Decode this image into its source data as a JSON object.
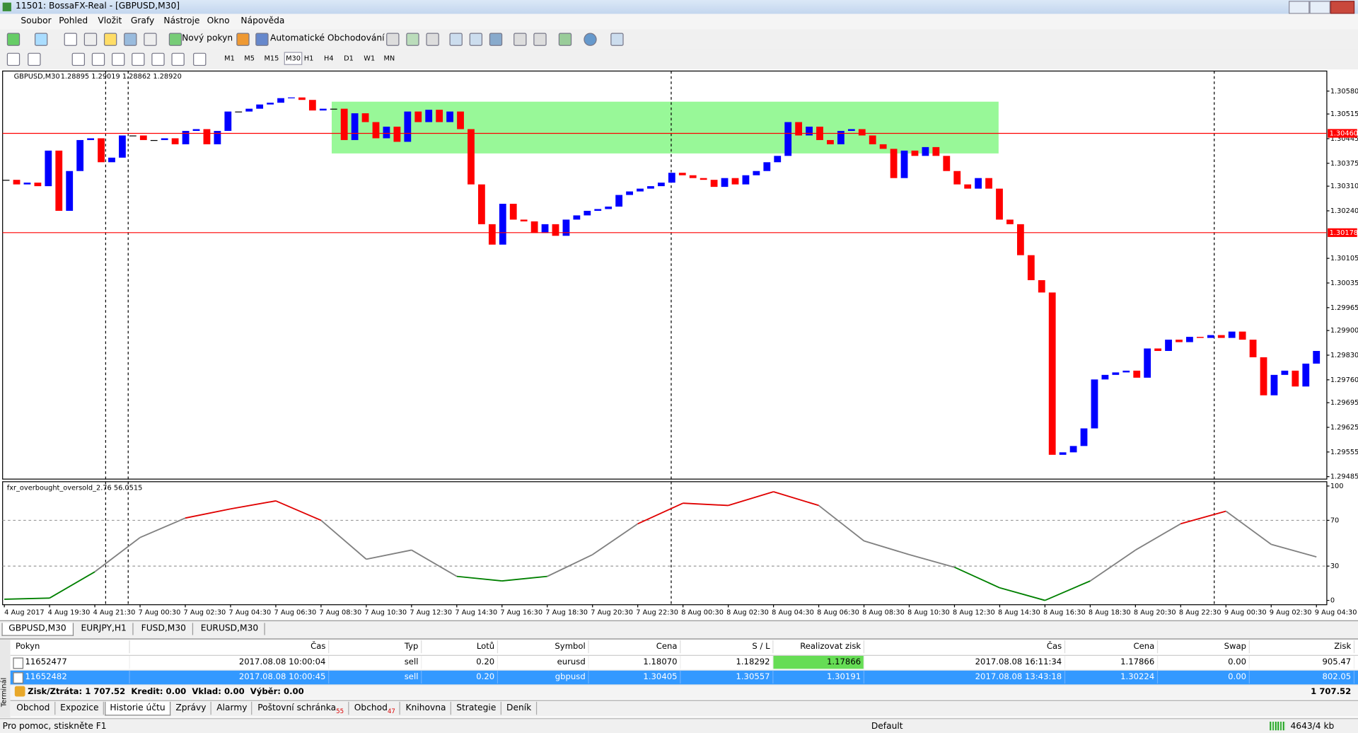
{
  "window": {
    "title": "11501: BossaFX-Real - [GBPUSD,M30]"
  },
  "menu": [
    "Soubor",
    "Pohled",
    "Vložit",
    "Grafy",
    "Nástroje",
    "Okno",
    "Nápověda"
  ],
  "toolbar": {
    "new_order": "Nový pokyn",
    "auto_trading": "Automatické Obchodování",
    "timeframes": [
      "M1",
      "M5",
      "M15",
      "M30",
      "H1",
      "H4",
      "D1",
      "W1",
      "MN"
    ]
  },
  "chart": {
    "label": "GBPUSD,M30",
    "quote": "1.28895 1.29019 1.28862 1.28920",
    "up_color": "#0000ff",
    "down_color": "#ff0000",
    "close": [
      1.30328,
      1.30315,
      1.3032,
      1.3031,
      1.30411,
      1.3024,
      1.30353,
      1.30441,
      1.30446,
      1.30378,
      1.30391,
      1.30454,
      1.30454,
      1.30441,
      1.30441,
      1.30446,
      1.30429,
      1.30467,
      1.30472,
      1.30429,
      1.30467,
      1.30522,
      1.30522,
      1.3053,
      1.30542,
      1.30547,
      1.3056,
      1.30562,
      1.30555,
      1.30525,
      1.3053,
      1.3053,
      1.30441,
      1.30517,
      1.30492,
      1.30446,
      1.30479,
      1.30436,
      1.30522,
      1.30492,
      1.30527,
      1.30492,
      1.30522,
      1.30472,
      1.30315,
      1.30202,
      1.30144,
      1.3026,
      1.30215,
      1.3021,
      1.30177,
      1.30202,
      1.30169,
      1.30215,
      1.30227,
      1.3024,
      1.30245,
      1.30252,
      1.30285,
      1.30295,
      1.30303,
      1.3031,
      1.3032,
      1.30348,
      1.30341,
      1.30333,
      1.30328,
      1.30308,
      1.30333,
      1.30315,
      1.30341,
      1.30353,
      1.30378,
      1.30396,
      1.30492,
      1.30454,
      1.30479,
      1.30441,
      1.30429,
      1.30467,
      1.30472,
      1.30454,
      1.30429,
      1.30416,
      1.30333,
      1.30411,
      1.30396,
      1.30421,
      1.30396,
      1.30353,
      1.30315,
      1.30303,
      1.30333,
      1.30303,
      1.30215,
      1.30202,
      1.30114,
      1.30043,
      1.30008,
      1.29547,
      1.29554,
      1.29572,
      1.29622,
      1.29761,
      1.29774,
      1.29781,
      1.29786,
      1.29766,
      1.29849,
      1.29842,
      1.29874,
      1.29867,
      1.29882,
      1.29879,
      1.29887,
      1.29879,
      1.29897,
      1.29874,
      1.29824,
      1.29716,
      1.29774,
      1.29786,
      1.29741,
      1.29806,
      1.29842
    ],
    "ylim": [
      1.29478,
      1.30637
    ],
    "yticks": [
      {
        "value": 1.3058,
        "label": "1.30580"
      },
      1.30515,
      1.30445,
      1.30375,
      {
        "value": 1.3031,
        "label": "1.30310"
      },
      {
        "value": 1.3024,
        "label": "1.30240"
      },
      1.30105,
      1.30035,
      1.29965,
      {
        "value": 1.299,
        "label": "1.29900"
      },
      {
        "value": 1.2983,
        "label": "1.29830"
      },
      {
        "value": 1.2976,
        "label": "1.29760"
      },
      1.29695,
      1.29625,
      1.29555,
      1.29485
    ],
    "levels": [
      {
        "value": 1.3046,
        "label": "1.30460"
      },
      1.30178
    ],
    "level_color": "#ff0000",
    "zone": {
      "from": 1.30403,
      "to": 1.3055,
      "color": "#98f898"
    },
    "x_labels": [
      "4 Aug 2017",
      "4 Aug 19:30",
      "4 Aug 21:30",
      "7 Aug 00:30",
      "7 Aug 02:30",
      "7 Aug 04:30",
      "7 Aug 06:30",
      "7 Aug 08:30",
      "7 Aug 10:30",
      "7 Aug 12:30",
      "7 Aug 14:30",
      "7 Aug 16:30",
      "7 Aug 18:30",
      "7 Aug 20:30",
      "7 Aug 22:30",
      "8 Aug 00:30",
      "8 Aug 02:30",
      "8 Aug 04:30",
      "8 Aug 06:30",
      "8 Aug 08:30",
      "8 Aug 10:30",
      "8 Aug 12:30",
      "8 Aug 14:30",
      "8 Aug 16:30",
      "8 Aug 18:30",
      "8 Aug 20:30",
      "8 Aug 22:30",
      "9 Aug 00:30",
      "9 Aug 02:30",
      "9 Aug 04:30"
    ]
  },
  "oscillator": {
    "label": "fxr_overbought_oversold_2.76 56.0515",
    "values": [
      1,
      2,
      25,
      55,
      72,
      80,
      87,
      70,
      36,
      44,
      21,
      17,
      21,
      40,
      67,
      85,
      83,
      95,
      83,
      52,
      40,
      29,
      11,
      0,
      17,
      44,
      67,
      78,
      49,
      38
    ],
    "ylim": [
      0,
      100
    ],
    "yticks": [
      100,
      70,
      30,
      0
    ],
    "levels": [
      70,
      30
    ],
    "colors": {
      "high": "#e00000",
      "mid": "#808080",
      "low": "#008000"
    }
  },
  "chart_tabs": [
    "GBPUSD,M30",
    "EURJPY,H1",
    "FUSD,M30",
    "EURUSD,M30"
  ],
  "terminal": {
    "side_label": "Terminál",
    "columns": [
      "Pokyn",
      "Čas",
      "Typ",
      "Lotů",
      "Symbol",
      "Cena",
      "S / L",
      "Realizovat zisk",
      "Čas",
      "Cena",
      "Swap",
      "Zisk"
    ],
    "rows": [
      [
        "11652477",
        "2017.08.08 10:00:04",
        "sell",
        "0.20",
        "eurusd",
        "1.18070",
        "1.18292",
        "1.17866",
        "2017.08.08 16:11:34",
        "1.17866",
        "0.00",
        "905.47"
      ],
      [
        "11652482",
        "2017.08.08 10:00:45",
        "sell",
        "0.20",
        "gbpusd",
        "1.30405",
        "1.30557",
        "1.30191",
        "2017.08.08 13:43:18",
        "1.30224",
        "0.00",
        "802.05"
      ]
    ],
    "summary": "Zisk/Ztráta: 1 707.52  Kredit: 0.00  Vklad: 0.00  Výběr: 0.00",
    "total": "1 707.52",
    "tabs": [
      {
        "label": "Obchod"
      },
      {
        "label": "Expozice"
      },
      {
        "label": "Historie účtu"
      },
      {
        "label": "Zprávy"
      },
      {
        "label": "Alarmy"
      },
      {
        "label": "Poštovní schránka",
        "count": 55
      },
      {
        "label": "Obchod",
        "count": 47
      },
      {
        "label": "Knihovna"
      },
      {
        "label": "Strategie"
      },
      {
        "label": "Deník"
      }
    ]
  },
  "status": {
    "help": "Pro pomoc, stiskněte F1",
    "profile": "Default",
    "traffic": "4643/4 kb"
  }
}
